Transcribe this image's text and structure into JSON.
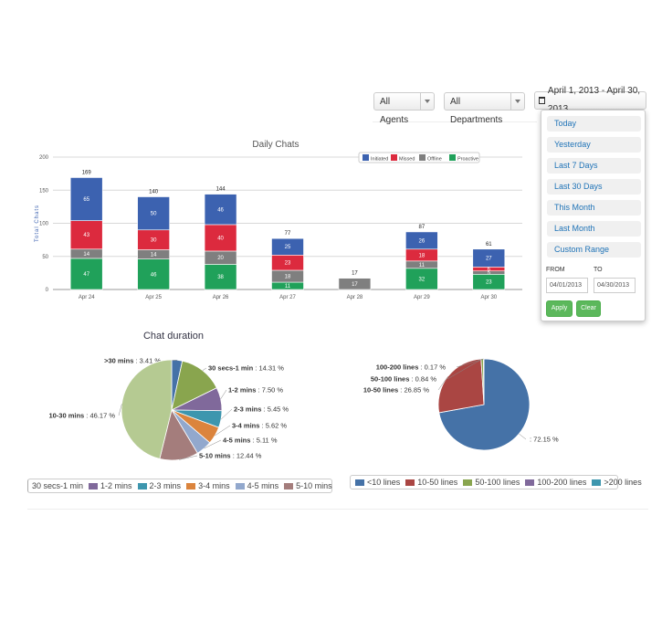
{
  "filters": {
    "agents_label": "All Agents",
    "departments_label": "All Departments",
    "date_range_label": "April 1, 2013 - April 30, 2013"
  },
  "date_dropdown": {
    "ranges": [
      "Today",
      "Yesterday",
      "Last 7 Days",
      "Last 30 Days",
      "This Month",
      "Last Month",
      "Custom Range"
    ],
    "from_label": "FROM",
    "to_label": "TO",
    "from_value": "04/01/2013",
    "to_value": "04/30/2013",
    "apply_label": "Apply",
    "clear_label": "Clear"
  },
  "legends": {
    "duration": [
      "30 secs-1 min",
      "1-2 mins",
      "2-3 mins",
      "3-4 mins",
      "4-5 mins",
      "5-10 mins"
    ],
    "lines": [
      "<10 lines",
      "10-50 lines",
      "50-100 lines",
      "100-200 lines",
      ">200 lines"
    ]
  },
  "colors": {
    "initiated": "#3c62b0",
    "missed": "#dc2a3e",
    "offline": "#7f7f7f",
    "proactive": "#20a15a",
    "button_green": "#5cb85c",
    "link_blue": "#1f73b7"
  },
  "chart_data": [
    {
      "type": "bar",
      "title": "Daily Chats",
      "ylabel": "Total Chats",
      "ylim": [
        0,
        200
      ],
      "yticks": [
        0,
        50,
        100,
        150,
        200
      ],
      "categories": [
        "Apr 24",
        "Apr 25",
        "Apr 26",
        "Apr 27",
        "Apr 28",
        "Apr 29",
        "Apr 30"
      ],
      "totals": [
        169,
        140,
        144,
        77,
        17,
        87,
        61
      ],
      "legend_position": "top-right",
      "series": [
        {
          "name": "Proactive",
          "color": "#20a15a",
          "values": [
            47,
            46,
            38,
            11,
            0,
            32,
            23
          ]
        },
        {
          "name": "Offline",
          "color": "#7f7f7f",
          "values": [
            14,
            14,
            20,
            18,
            17,
            11,
            5
          ]
        },
        {
          "name": "Missed",
          "color": "#dc2a3e",
          "values": [
            43,
            30,
            40,
            23,
            0,
            18,
            6
          ]
        },
        {
          "name": "Initiated",
          "color": "#3c62b0",
          "values": [
            65,
            50,
            46,
            25,
            0,
            26,
            27
          ]
        }
      ],
      "stack_labels": [
        [
          "47",
          "14",
          "43",
          "65"
        ],
        [
          "46",
          "14",
          "30",
          "50"
        ],
        [
          "38",
          "20",
          "40",
          "46"
        ],
        [
          "11",
          "18",
          "23",
          "25"
        ],
        [
          "",
          "17",
          "",
          ""
        ],
        [
          "32",
          "11",
          "18",
          "26"
        ],
        [
          "23",
          "5",
          "6",
          "27"
        ]
      ]
    },
    {
      "type": "pie",
      "title": "Chat duration",
      "slices": [
        {
          "label": ">30 mins",
          "value": 3.41,
          "text": ">30 mins : 3.41 %",
          "color": "#4572a7"
        },
        {
          "label": "30 secs-1 min",
          "value": 14.31,
          "text": "30 secs-1 min : 14.31 %",
          "color": "#89a54e"
        },
        {
          "label": "1-2 mins",
          "value": 7.5,
          "text": "1-2 mins : 7.50 %",
          "color": "#80699b"
        },
        {
          "label": "2-3 mins",
          "value": 5.45,
          "text": "2-3 mins : 5.45 %",
          "color": "#3d96ae"
        },
        {
          "label": "3-4 mins",
          "value": 5.62,
          "text": "3-4 mins : 5.62 %",
          "color": "#db843d"
        },
        {
          "label": "4-5 mins",
          "value": 5.11,
          "text": "4-5 mins : 5.11 %",
          "color": "#92a8cd"
        },
        {
          "label": "5-10 mins",
          "value": 12.44,
          "text": "5-10 mins : 12.44 %",
          "color": "#a47d7c"
        },
        {
          "label": "10-30 mins",
          "value": 46.17,
          "text": "10-30 mins : 46.17 %",
          "color": "#b5ca92"
        }
      ]
    },
    {
      "type": "pie",
      "title": "",
      "slices": [
        {
          "label": "<10 lines",
          "value": 72.15,
          "text": ": 72.15 %",
          "color": "#4572a7"
        },
        {
          "label": "10-50 lines",
          "value": 26.85,
          "text": "10-50 lines : 26.85 %",
          "color": "#aa4643"
        },
        {
          "label": "50-100 lines",
          "value": 0.84,
          "text": "50-100 lines : 0.84 %",
          "color": "#89a54e"
        },
        {
          "label": "100-200 lines",
          "value": 0.17,
          "text": "100-200 lines : 0.17 %",
          "color": "#80699b"
        }
      ]
    }
  ]
}
